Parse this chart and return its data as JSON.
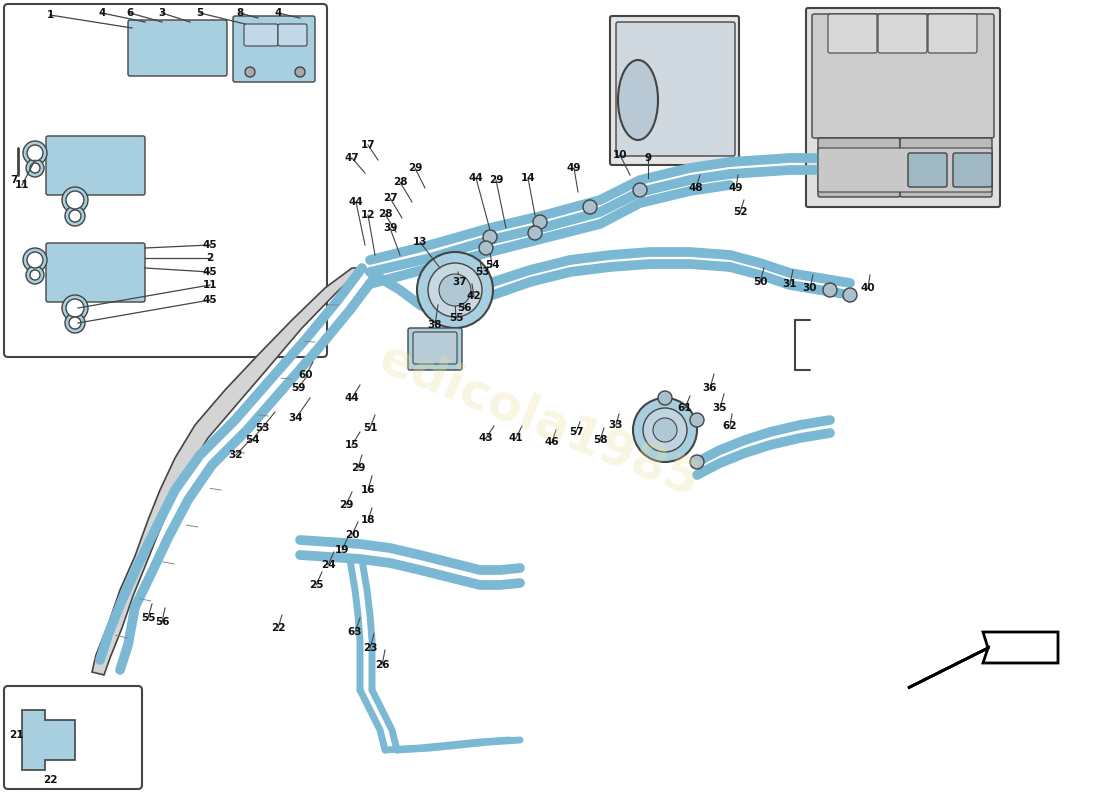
{
  "bg_color": "#ffffff",
  "line_color": "#7ab8d4",
  "component_color": "#a8cfe0",
  "outline_color": "#444444",
  "text_color": "#111111",
  "watermark_color": "#e8e0a0",
  "pipe_lw": 7,
  "thin_lw": 1.2
}
